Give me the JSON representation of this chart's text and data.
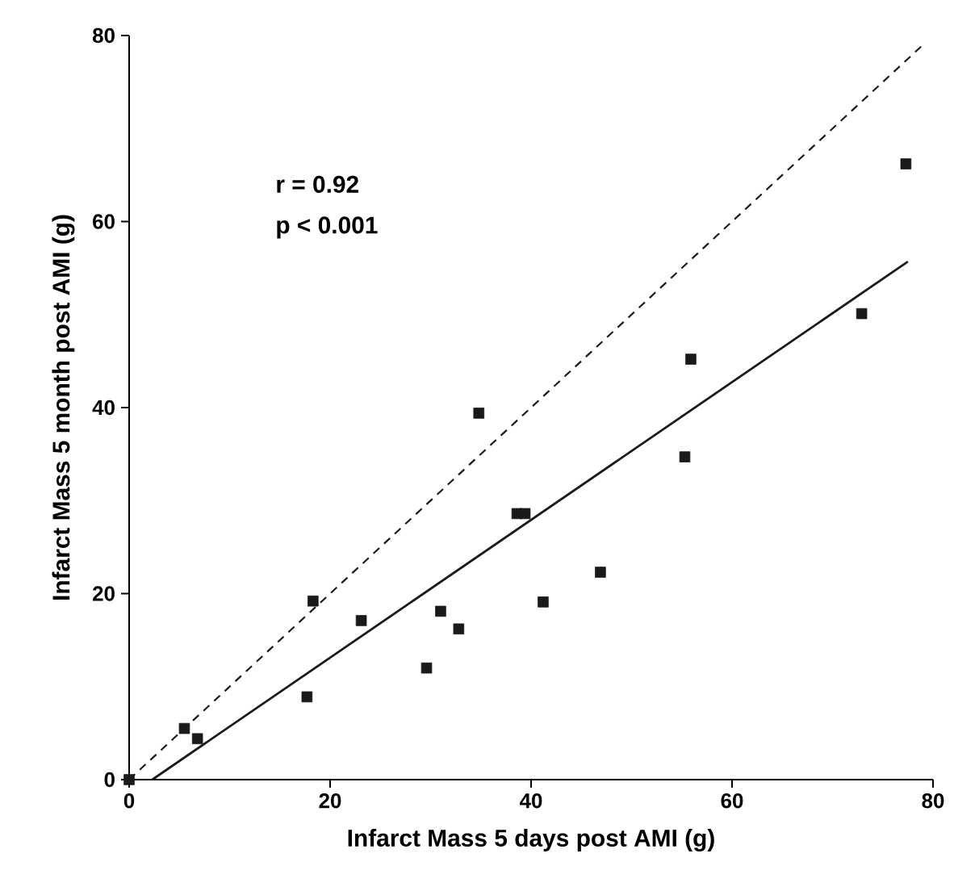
{
  "chart_data": {
    "type": "scatter",
    "xlabel": "Infarct Mass 5 days post AMI (g)",
    "ylabel": "Infarct Mass 5 month post AMI (g)",
    "xlim": [
      0,
      80
    ],
    "ylim": [
      0,
      80
    ],
    "xticks": [
      0,
      20,
      40,
      60,
      80
    ],
    "yticks": [
      0,
      20,
      40,
      60,
      80
    ],
    "marker": "square",
    "annotations": [
      "r = 0.92",
      "p < 0.001"
    ],
    "series": [
      {
        "color": "#1a1a1a",
        "x": [
          0,
          5.5,
          6.8,
          17.7,
          18.3,
          23.1,
          29.6,
          31.0,
          32.8,
          34.8,
          38.6,
          39.4,
          41.2,
          46.9,
          55.3,
          55.9,
          72.9,
          77.3
        ],
        "values": [
          0,
          5.5,
          4.4,
          8.9,
          19.2,
          17.1,
          12.0,
          18.1,
          16.2,
          39.4,
          28.6,
          28.6,
          19.1,
          22.3,
          34.7,
          45.2,
          50.1,
          66.2
        ]
      },
      {
        "type": "line",
        "color": "#1a1a1a",
        "line_style": "solid",
        "marker": "none",
        "x": [
          2.3,
          77.5
        ],
        "values": [
          0,
          55.7
        ]
      },
      {
        "type": "line",
        "color": "#1a1a1a",
        "line_style": "dashed",
        "marker": "none",
        "x": [
          0,
          79
        ],
        "values": [
          0,
          79
        ]
      }
    ]
  }
}
